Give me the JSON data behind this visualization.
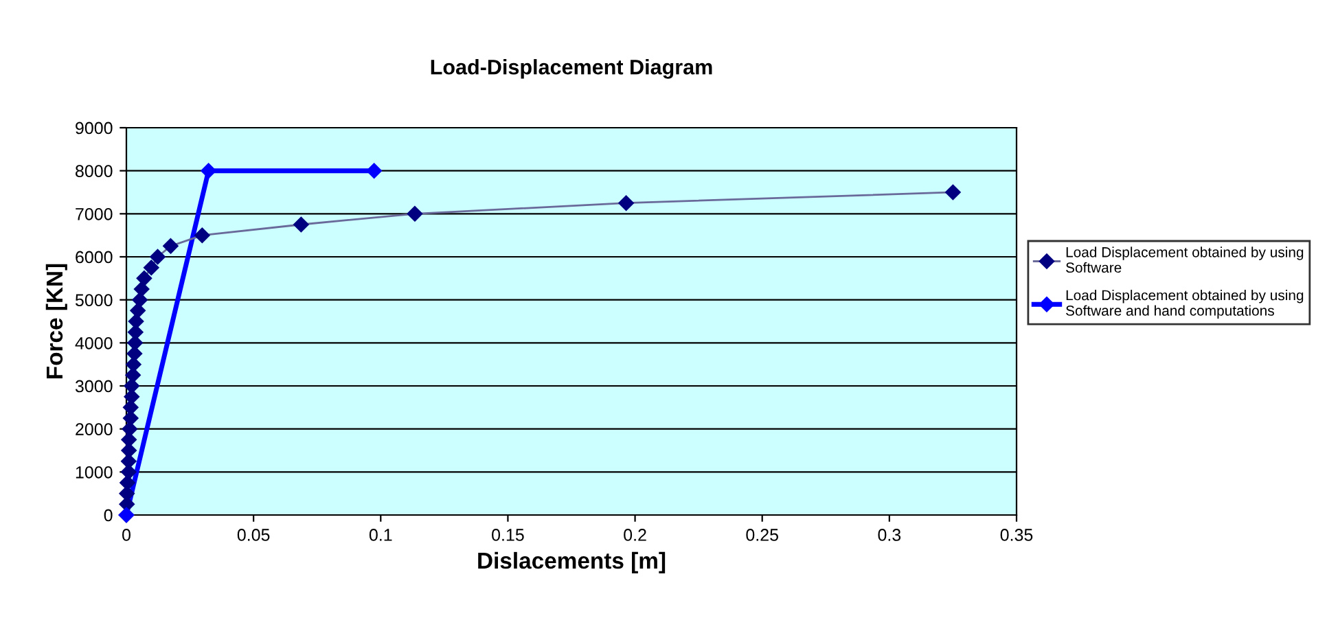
{
  "chart_data": {
    "type": "line",
    "title": "Load-Displacement Diagram",
    "xlabel": "Dislacements [m]",
    "ylabel": "Force [KN]",
    "xlim": [
      0,
      0.35
    ],
    "xticks": [
      0,
      0.05,
      0.1,
      0.15,
      0.2,
      0.25,
      0.3,
      0.35
    ],
    "ylim": [
      0,
      9000
    ],
    "yticks": [
      0,
      1000,
      2000,
      3000,
      4000,
      5000,
      6000,
      7000,
      8000,
      9000
    ],
    "grid": "y",
    "legend": "right",
    "marker": "diamond",
    "series": [
      {
        "name": "Load Displacement obtained by using\nSoftware",
        "color": "#000080",
        "x": [
          0,
          0.0002,
          0.0002,
          0.0004,
          0.0009,
          0.0009,
          0.001,
          0.001,
          0.0013,
          0.0017,
          0.0017,
          0.0021,
          0.0021,
          0.0026,
          0.0028,
          0.0032,
          0.0034,
          0.0036,
          0.0038,
          0.0045,
          0.0053,
          0.006,
          0.007,
          0.0098,
          0.0123,
          0.0174,
          0.0298,
          0.0687,
          0.1134,
          0.1965,
          0.325
        ],
        "values": [
          0,
          250,
          500,
          750,
          1000,
          1250,
          1500,
          1750,
          2000,
          2250,
          2500,
          2750,
          3000,
          3250,
          3500,
          3750,
          4000,
          4250,
          4500,
          4750,
          5000,
          5250,
          5500,
          5750,
          6000,
          6250,
          6500,
          6750,
          7000,
          7250,
          7500
        ]
      },
      {
        "name": "Load Displacement obtained by using\nSoftware and hand computations",
        "color": "#0000ff",
        "x": [
          0,
          0.0323,
          0.0974
        ],
        "values": [
          0,
          8000,
          8000
        ]
      }
    ]
  }
}
